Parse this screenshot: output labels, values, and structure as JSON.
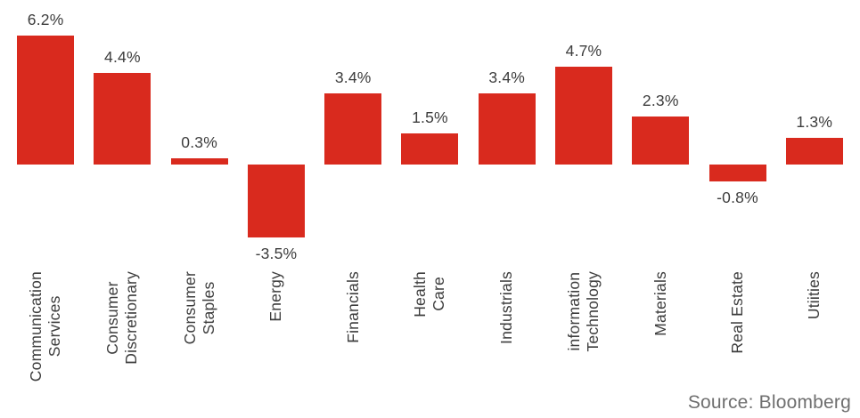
{
  "chart_data": {
    "type": "bar",
    "title": "",
    "xlabel": "",
    "ylabel": "",
    "unit": "%",
    "grid": false,
    "legend": false,
    "axes_hidden": true,
    "ylim": [
      -3.5,
      6.2
    ],
    "categories": [
      "Communication Services",
      "Consumer Discretionary",
      "Consumer Staples",
      "Energy",
      "Financials",
      "Health Care",
      "Industrials",
      "information Technology",
      "Materials",
      "Real Estate",
      "Utiities"
    ],
    "category_label_lines": [
      "Communication\nServices",
      "Consumer\nDiscretionary",
      "Consumer\nStaples",
      "Energy",
      "Financials",
      "Health\nCare",
      "Industrials",
      "information\nTechnology",
      "Materials",
      "Real Estate",
      "Utiities"
    ],
    "values": [
      6.2,
      4.4,
      0.3,
      -3.5,
      3.4,
      1.5,
      3.4,
      4.7,
      2.3,
      -0.8,
      1.3
    ],
    "value_labels": [
      "6.2%",
      "4.4%",
      "0.3%",
      "-3.5%",
      "3.4%",
      "1.5%",
      "3.4%",
      "4.7%",
      "2.3%",
      "-0.8%",
      "1.3%"
    ],
    "bar_color": "#d92a1e",
    "value_label_color": "#3d3d3d",
    "category_label_color": "#3d3d3d",
    "source_color": "#6f6f6f",
    "source": "Source: Bloomberg"
  }
}
